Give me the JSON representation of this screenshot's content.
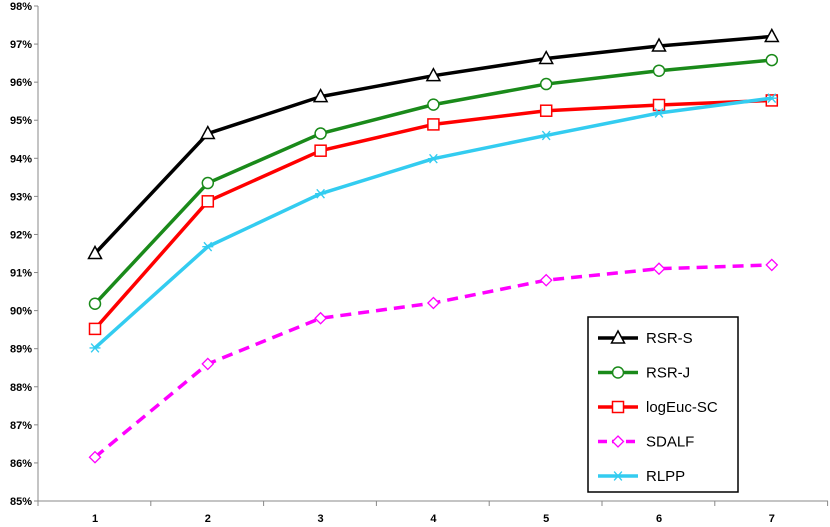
{
  "chart_data": {
    "type": "line",
    "title": "",
    "xlabel": "",
    "ylabel": "",
    "x": [
      1,
      2,
      3,
      4,
      5,
      6,
      7
    ],
    "x_tick_labels": [
      "1",
      "2",
      "3",
      "4",
      "5",
      "6",
      "7"
    ],
    "ylim": [
      85,
      98
    ],
    "y_tick_labels": [
      "85%",
      "86%",
      "87%",
      "88%",
      "89%",
      "90%",
      "91%",
      "92%",
      "93%",
      "94%",
      "95%",
      "96%",
      "97%",
      "98%"
    ],
    "grid": false,
    "legend_position": "bottom-right",
    "series": [
      {
        "name": "RSR-S",
        "color": "#000000",
        "marker": "triangle",
        "dash": "solid",
        "values": [
          91.5,
          94.65,
          95.62,
          96.17,
          96.62,
          96.95,
          97.2
        ]
      },
      {
        "name": "RSR-J",
        "color": "#1a8a1a",
        "marker": "circle",
        "dash": "solid",
        "values": [
          90.18,
          93.35,
          94.65,
          95.41,
          95.95,
          96.3,
          96.58
        ]
      },
      {
        "name": "logEuc-SC",
        "color": "#ff0000",
        "marker": "square",
        "dash": "solid",
        "values": [
          89.52,
          92.87,
          94.2,
          94.89,
          95.25,
          95.4,
          95.52
        ]
      },
      {
        "name": "SDALF",
        "color": "#ff00ff",
        "marker": "diamond",
        "dash": "dashed",
        "values": [
          86.15,
          88.6,
          89.8,
          90.2,
          90.8,
          91.1,
          91.2
        ]
      },
      {
        "name": "RLPP",
        "color": "#33ccf0",
        "marker": "asterisk",
        "dash": "solid",
        "values": [
          89.02,
          91.68,
          93.07,
          93.99,
          94.6,
          95.19,
          95.58
        ]
      }
    ]
  }
}
